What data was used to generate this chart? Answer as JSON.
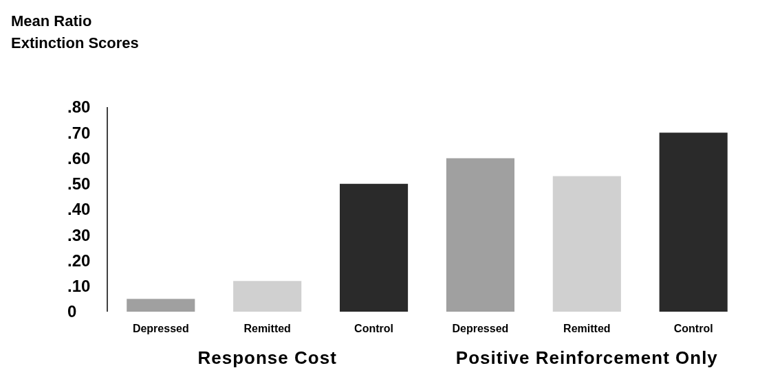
{
  "chart_data": {
    "type": "bar",
    "ylabel": "Mean Ratio\nExtinction Scores",
    "categories": [
      "Depressed",
      "Remitted",
      "Control",
      "Depressed",
      "Remitted",
      "Control"
    ],
    "values": [
      0.05,
      0.12,
      0.5,
      0.6,
      0.53,
      0.7
    ],
    "colors": [
      "#a0a0a0",
      "#d0d0d0",
      "#2a2a2a",
      "#a0a0a0",
      "#d0d0d0",
      "#2a2a2a"
    ],
    "ylim": [
      0,
      0.8
    ],
    "yticks": [
      {
        "value": 0,
        "label": "0"
      },
      {
        "value": 0.1,
        "label": ".10"
      },
      {
        "value": 0.2,
        "label": ".20"
      },
      {
        "value": 0.3,
        "label": ".30"
      },
      {
        "value": 0.4,
        "label": ".40"
      },
      {
        "value": 0.5,
        "label": ".50"
      },
      {
        "value": 0.6,
        "label": ".60"
      },
      {
        "value": 0.7,
        "label": ".70"
      },
      {
        "value": 0.8,
        "label": ".80"
      }
    ],
    "annotations": [
      "Response Cost",
      "Positive Reinforcement Only"
    ]
  }
}
